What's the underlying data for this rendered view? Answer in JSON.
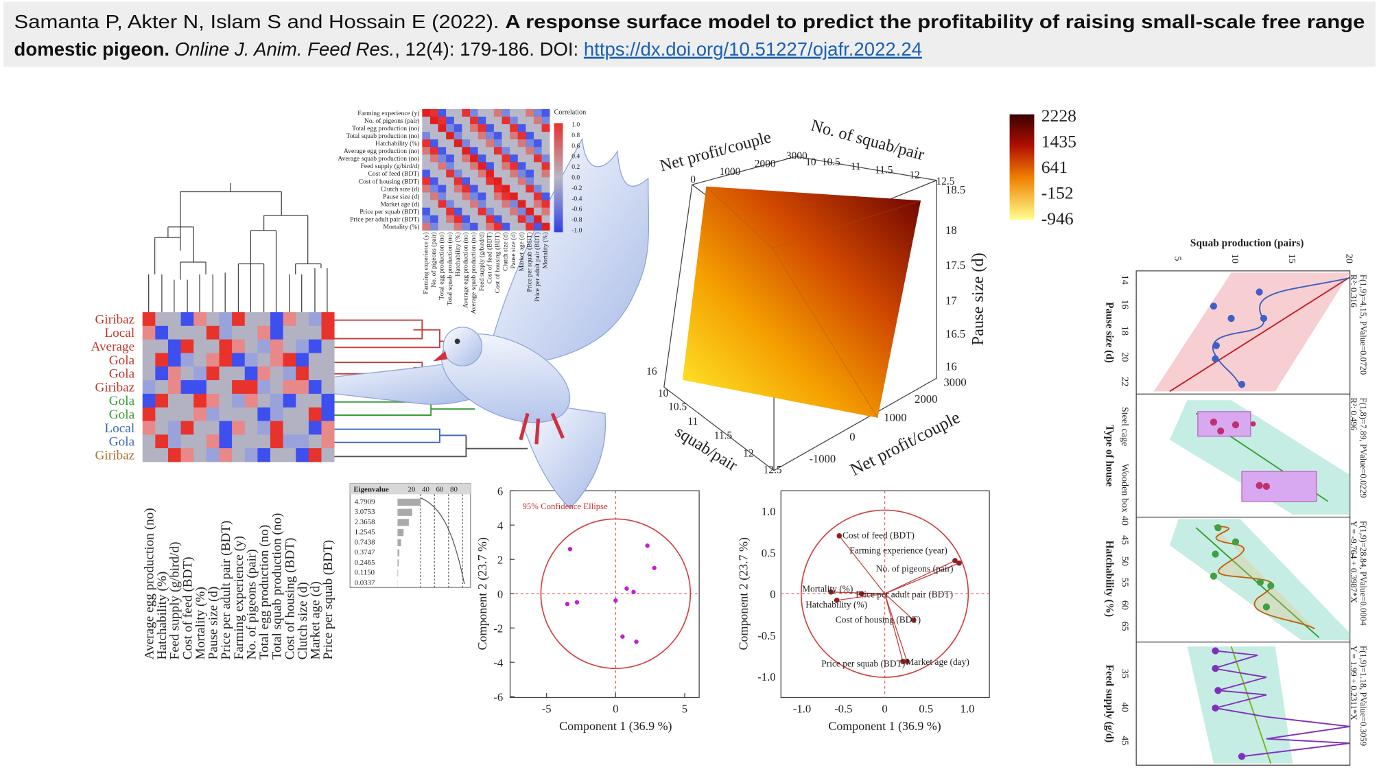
{
  "citation": {
    "authors": "Samanta P, Akter N, Islam S and Hossain E (2022). ",
    "title_line1": "A response surface model to predict the profitability of raising small-scale free range",
    "title_line2": "domestic pigeon.",
    "journal": "Online J. Anim. Feed Res.",
    "details": ", 12(4): 179-186. DOI: ",
    "doi": "https://dx.doi.org/10.51227/ojafr.2022.24"
  },
  "cluster_heatmap": {
    "rows": [
      "Giribaz",
      "Local",
      "Average",
      "Gola",
      "Gola",
      "Giribaz",
      "Gola",
      "Gola",
      "Local",
      "Gola",
      "Giribaz"
    ],
    "columns": [
      "Average egg production (no)",
      "Hatchability (%)",
      "Feed supply (g/bird/d)",
      "Cost of feed (BDT)",
      "Mortality (%)",
      "Pause size (d)",
      "Price per adult pair (BDT)",
      "Farming experience (y)",
      "No. of pigeons (pair)",
      "Total egg production (no)",
      "Total squab production (no)",
      "Cost of housing (BDT)",
      "Clutch size (d)",
      "Market age (d)",
      "Price per squab (BDT)"
    ]
  },
  "correlation_matrix": {
    "variables": [
      "Farming experience (y)",
      "No. of pigeons (pair)",
      "Total egg production (no)",
      "Total squab production (no)",
      "Hatchability (%)",
      "Average egg production (no)",
      "Average squab production (no)",
      "Feed supply (g/bird/d)",
      "Cost of feed (BDT)",
      "Cost of housing (BDT)",
      "Clutch size (d)",
      "Pause size (d)",
      "Market age (d)",
      "Price per squab (BDT)",
      "Price per adult pair (BDT)",
      "Mortality (%)"
    ],
    "legend_title": "Correlation",
    "legend_ticks": [
      "1.0",
      "0.8",
      "0.6",
      "0.4",
      "0.2",
      "0.0",
      "-0.2",
      "-0.4",
      "-0.6",
      "-0.8",
      "-1.0"
    ]
  },
  "surface_3d": {
    "top_axis_label": "Net profit/couple",
    "top_ticks": [
      0,
      1000,
      2000,
      3000
    ],
    "depth_axis_label": "No. of squab/pair",
    "depth_ticks": [
      "10",
      "10.5",
      "11",
      "11.5",
      "12",
      "12.5"
    ],
    "vertical_axis_label": "Pause size (d)",
    "vertical_ticks": [
      "18.5",
      "18",
      "17.5",
      "17",
      "16.5",
      "16"
    ],
    "right_axis_label": "Net profit/couple",
    "right_ticks": [
      3000,
      2000,
      1000,
      0,
      -1000
    ],
    "front_axis_label": "squab/pair",
    "front_ticks": [
      "16",
      "10",
      "10.5",
      "11",
      "11.5",
      "12",
      "12.5"
    ],
    "colorbar_ticks": [
      2228,
      1435,
      641,
      -152,
      -946
    ]
  },
  "eigen_table": {
    "header": "Eigenvalue",
    "scale": [
      20,
      40,
      60,
      80
    ],
    "values": [
      "4.7909",
      "3.0753",
      "2.3658",
      "1.2545",
      "0.7438",
      "0.3747",
      "0.2465",
      "0.1150",
      "0.0337"
    ]
  },
  "pca_scatter": {
    "annotation": "95% Confidence Ellipse",
    "x_label": "Component 1 (36.9 %)",
    "y_label": "Component 2 (23.7 %)",
    "xticks": [
      -5,
      0,
      5
    ],
    "yticks": [
      6,
      4,
      2,
      0,
      -2,
      -4,
      -6
    ],
    "points": [
      [
        -3.3,
        2.6
      ],
      [
        -3.5,
        -0.6
      ],
      [
        -2.8,
        -0.5
      ],
      [
        0,
        -0.4
      ],
      [
        0.8,
        0.3
      ],
      [
        1.3,
        0.1
      ],
      [
        2.3,
        2.8
      ],
      [
        2.8,
        1.5
      ],
      [
        0.5,
        -2.5
      ],
      [
        1.5,
        -2.8
      ]
    ]
  },
  "biplot": {
    "x_label": "Component 1 (36.9 %)",
    "y_label": "Component 2 (23.7 %)",
    "xticks": [
      "-1.0",
      "-0.5",
      "0",
      "0.5",
      "1.0"
    ],
    "yticks": [
      "1.0",
      "0.5",
      "0",
      "-0.5",
      "-1.0"
    ],
    "variables": [
      {
        "label": "Cost of feed (BDT)",
        "x": -0.55,
        "y": 0.7
      },
      {
        "label": "Farming experience (year)",
        "x": 0.85,
        "y": 0.4
      },
      {
        "label": "No. of pigeons (pair)",
        "x": 0.9,
        "y": 0.37
      },
      {
        "label": "Mortality (%)",
        "x": -0.65,
        "y": 0.02
      },
      {
        "label": "Price per adult pair (BDT)",
        "x": -0.28,
        "y": 0.0
      },
      {
        "label": "Hatchability (%)",
        "x": -0.58,
        "y": -0.08
      },
      {
        "label": "Cost of housing (BDT)",
        "x": 0.35,
        "y": -0.32
      },
      {
        "label": "Price per squab (BDT)",
        "x": 0.22,
        "y": -0.82
      },
      {
        "label": "Market age (day)",
        "x": 0.27,
        "y": -0.82
      }
    ]
  },
  "regression_panels": {
    "x_label": "Squab production (pairs)",
    "xticks": [
      5,
      10,
      15,
      20
    ],
    "panels": [
      {
        "y_label": "Pause size (d)",
        "yticks": [
          "14",
          "16",
          "18",
          "20",
          "22"
        ],
        "stats": [
          "R²: 0.316",
          "F(1,9)=4.15, PValue=0.0720"
        ]
      },
      {
        "y_label": "Type of house",
        "yticks": [
          "Steel cage",
          "Wooden box"
        ],
        "stats": [
          "R²: 0.496",
          "F(1,8)=7.89, PValue=0.0229"
        ]
      },
      {
        "y_label": "Hatchability (%)",
        "yticks": [
          "40",
          "45",
          "50",
          "55",
          "60",
          "65"
        ],
        "stats": [
          "Y = -9.764 + 0.3987*X",
          "F(1,9)=28.84, PValue=0.0004"
        ]
      },
      {
        "y_label": "Feed supply (g/d)",
        "yticks": [
          "35",
          "40",
          "45"
        ],
        "stats": [
          "Y = 1.99 + 0.2311*X",
          "F(1,9)=1.18, PValue=0.3059"
        ]
      }
    ]
  }
}
